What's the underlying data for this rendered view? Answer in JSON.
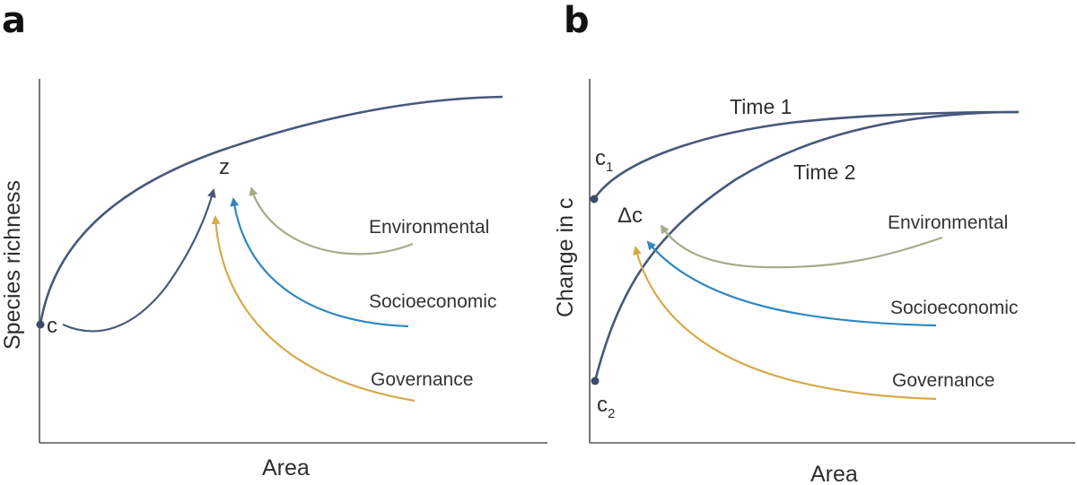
{
  "panels": {
    "a": {
      "letter": "a",
      "x_label": "Area",
      "y_label": "Species richness",
      "c_label": "c",
      "z_label": "z",
      "drivers": [
        "Environmental",
        "Socioeconomic",
        "Governance"
      ]
    },
    "b": {
      "letter": "b",
      "x_label": "Area",
      "y_label": "Change in c",
      "time1_label": "Time 1",
      "time2_label": "Time 2",
      "c1_main": "c",
      "c1_sub": "1",
      "c2_main": "c",
      "c2_sub": "2",
      "delta_c": "Δc",
      "drivers": [
        "Environmental",
        "Socioeconomic",
        "Governance"
      ]
    }
  },
  "colors": {
    "curve": "#47587a",
    "environmental": "#a8a98a",
    "socioeconomic": "#2f86c2",
    "governance": "#d8a94a",
    "axis": "#555555"
  }
}
